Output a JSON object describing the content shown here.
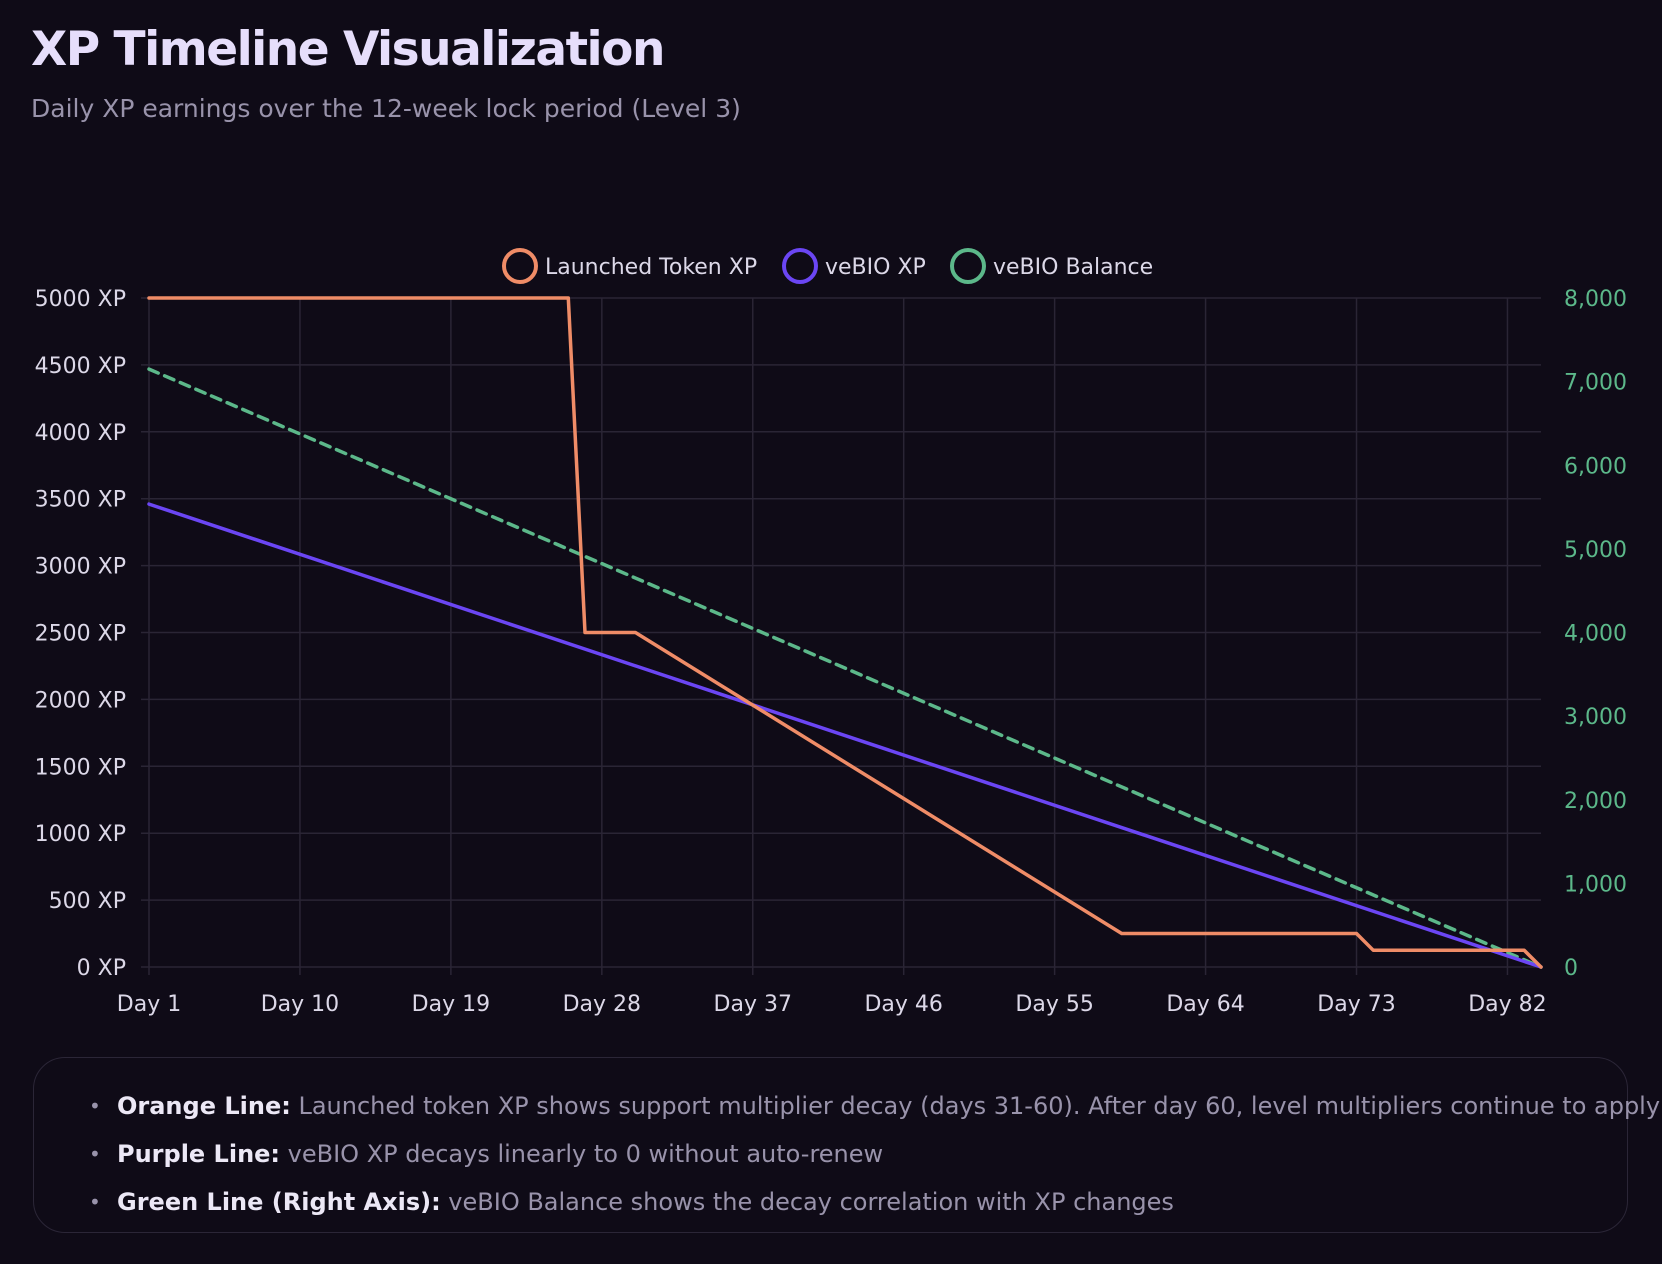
{
  "header": {
    "title": "XP Timeline Visualization",
    "subtitle": "Daily XP earnings over the 12-week lock period (Level 3)"
  },
  "chart_data": {
    "type": "line",
    "title": "XP Timeline Visualization",
    "x_ticks": [
      "Day 1",
      "Day 10",
      "Day 19",
      "Day 28",
      "Day 37",
      "Day 46",
      "Day 55",
      "Day 64",
      "Day 73",
      "Day 82"
    ],
    "xlim": [
      1,
      84
    ],
    "y_left": {
      "ticks": [
        "0 XP",
        "500 XP",
        "1000 XP",
        "1500 XP",
        "2000 XP",
        "2500 XP",
        "3000 XP",
        "3500 XP",
        "4000 XP",
        "4500 XP",
        "5000 XP"
      ],
      "range": [
        0,
        5000
      ]
    },
    "y_right": {
      "ticks": [
        "0",
        "1,000",
        "2,000",
        "3,000",
        "4,000",
        "5,000",
        "6,000",
        "7,000",
        "8,000"
      ],
      "range": [
        0,
        8000
      ]
    },
    "grid": true,
    "legend_position": "top-center",
    "series": [
      {
        "name": "Launched Token XP",
        "color": "#ef8c67",
        "axis": "left",
        "dash": false,
        "points": [
          [
            1,
            5000
          ],
          [
            26,
            5000
          ],
          [
            27,
            2500
          ],
          [
            29,
            2500
          ],
          [
            30,
            2500
          ],
          [
            59,
            250
          ],
          [
            73,
            250
          ],
          [
            74,
            125
          ],
          [
            83,
            125
          ],
          [
            84,
            0
          ]
        ]
      },
      {
        "name": "veBIO XP",
        "color": "#6b46f4",
        "axis": "left",
        "dash": false,
        "points": [
          [
            1,
            3460
          ],
          [
            84,
            0
          ]
        ]
      },
      {
        "name": "veBIO Balance",
        "color": "#5cb88a",
        "axis": "right",
        "dash": true,
        "points": [
          [
            1,
            7150
          ],
          [
            84,
            0
          ]
        ]
      }
    ]
  },
  "notes": [
    {
      "label": "Orange Line:",
      "text": " Launched token XP shows support multiplier decay (days 31-60). After day 60, level multipliers continue to apply"
    },
    {
      "label": "Purple Line:",
      "text": " veBIO XP decays linearly to 0 without auto-renew"
    },
    {
      "label": "Green Line (Right Axis):",
      "text": " veBIO Balance shows the decay correlation with XP changes"
    }
  ]
}
